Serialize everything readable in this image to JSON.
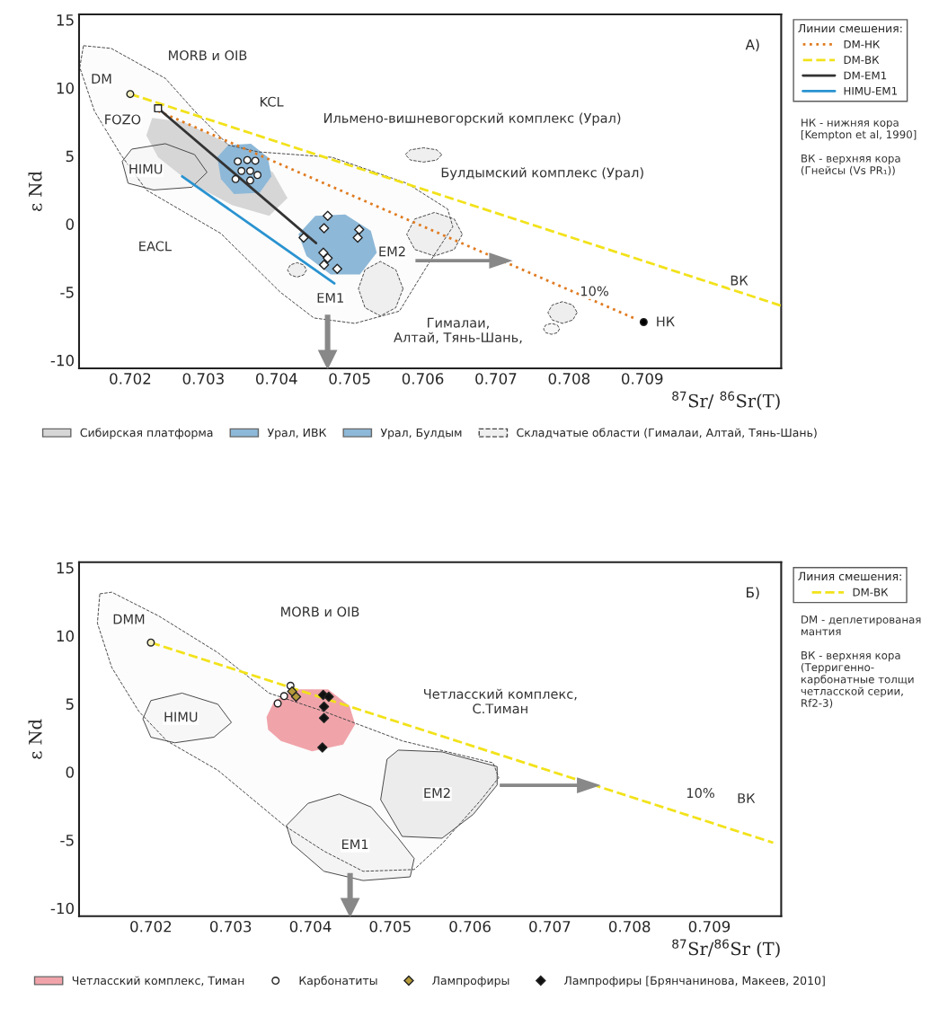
{
  "chart_data": [
    {
      "type": "scatter",
      "title": "А)",
      "xlabel": "$^{87}$Sr/ $^{86}$Sr(T)",
      "ylabel": "ε Nd",
      "legend_title": "Линии смешения:",
      "legend": "right",
      "xlim": [
        0.7013,
        0.7109
      ],
      "ylim": [
        -10.6,
        15.4
      ],
      "xticks": [
        0.702,
        0.703,
        0.704,
        0.705,
        0.706,
        0.707,
        0.708,
        0.709
      ],
      "yticks": [
        -10,
        -5,
        0,
        5,
        10,
        15
      ],
      "series": [
        {
          "type": "area",
          "line_style": "dashed",
          "color": "#fcfcfc",
          "x": [
            0.70136,
            0.70174,
            0.70248,
            0.70288,
            0.70334,
            0.70375,
            0.70476,
            0.70578,
            0.70634,
            0.70641,
            0.70608,
            0.70568,
            0.70507,
            0.70451,
            0.70405,
            0.70324,
            0.70273,
            0.70222,
            0.70187,
            0.70151,
            0.70131
          ],
          "values": [
            13.1,
            12.9,
            10.7,
            8.3,
            5.8,
            5.3,
            4.9,
            3.0,
            1.1,
            -0.2,
            -2.9,
            -6.4,
            -7.3,
            -6.9,
            -5.0,
            -0.7,
            0.9,
            2.5,
            5.1,
            8.3,
            11.5
          ]
        },
        {
          "type": "area",
          "name": "Сибирская платформа",
          "color": "#d6d6d6",
          "x": [
            0.7023,
            0.70273,
            0.70334,
            0.70395,
            0.70415,
            0.7039,
            0.70339,
            0.70283,
            0.70238,
            0.70222
          ],
          "values": [
            7.8,
            7.5,
            5.9,
            3.8,
            1.9,
            0.6,
            1.4,
            3.0,
            4.9,
            6.5
          ]
        },
        {
          "type": "area",
          "line_style": "solid",
          "color": "#f7f7f7",
          "x": [
            0.70189,
            0.70202,
            0.70248,
            0.70288,
            0.70305,
            0.70284,
            0.70232,
            0.70197
          ],
          "values": [
            4.6,
            5.5,
            5.9,
            5.1,
            3.8,
            2.7,
            2.5,
            3.0
          ]
        },
        {
          "type": "area",
          "name": "Урал, ИВК",
          "color": "#8db8d8",
          "x": [
            0.70319,
            0.70334,
            0.70365,
            0.70388,
            0.70393,
            0.70377,
            0.70342,
            0.70324
          ],
          "values": [
            4.9,
            5.8,
            5.9,
            4.9,
            3.5,
            2.3,
            2.2,
            3.3
          ]
        },
        {
          "type": "area",
          "name": "Урал, Булдым",
          "color": "#8db8d8",
          "x": [
            0.7043,
            0.70453,
            0.70494,
            0.70529,
            0.70537,
            0.70514,
            0.70474,
            0.70441
          ],
          "values": [
            -0.75,
            0.6,
            0.7,
            -0.5,
            -2.1,
            -3.7,
            -3.7,
            -2.35
          ]
        },
        {
          "type": "area",
          "name": "Складчатые области (Гималаи, Алтай, Тянь-Шань)",
          "line_style": "dashed",
          "color": "#efefef",
          "x": [
            0.70654,
            0.70643,
            0.70616,
            0.70589,
            0.70578,
            0.70589,
            0.70616,
            0.70643
          ],
          "values": [
            -0.75,
            -1.87,
            -2.35,
            -1.87,
            -0.75,
            0.37,
            0.85,
            0.37
          ]
        },
        {
          "type": "area",
          "line_style": "dashed",
          "color": "#efefef",
          "x": [
            0.70573,
            0.70563,
            0.70542,
            0.70521,
            0.70512,
            0.70521,
            0.70542,
            0.70563
          ],
          "values": [
            -4.75,
            -6.15,
            -6.75,
            -6.15,
            -4.75,
            -3.35,
            -2.75,
            -3.35
          ]
        },
        {
          "type": "area",
          "line_style": "dashed",
          "color": "#efefef",
          "x": [
            0.70626,
            0.70619,
            0.70601,
            0.70583,
            0.70576,
            0.70583,
            0.70601,
            0.70619
          ],
          "values": [
            5.1,
            4.7,
            4.55,
            4.7,
            5.1,
            5.45,
            5.6,
            5.45
          ]
        },
        {
          "type": "area",
          "line_style": "dashed",
          "color": "#eeeeee",
          "x": [
            0.70811,
            0.70805,
            0.70791,
            0.70777,
            0.70771,
            0.70777,
            0.70791,
            0.70805
          ],
          "values": [
            -6.5,
            -7.05,
            -7.3,
            -7.05,
            -6.5,
            -5.95,
            -5.7,
            -5.95
          ]
        },
        {
          "type": "area",
          "line_style": "dashed",
          "color": "#f7f7f7",
          "x": [
            0.70787,
            0.70784,
            0.70776,
            0.70768,
            0.70765,
            0.70768,
            0.70776,
            0.70784
          ],
          "values": [
            -7.7,
            -7.98,
            -8.1,
            -7.98,
            -7.7,
            -7.42,
            -7.3,
            -7.42
          ]
        },
        {
          "type": "area",
          "line_style": "dashed",
          "color": "#efefef",
          "x": [
            0.70441,
            0.70437,
            0.70428,
            0.70419,
            0.70415,
            0.70419,
            0.70428,
            0.70437
          ],
          "values": [
            -3.37,
            -3.74,
            -3.9,
            -3.74,
            -3.37,
            -3.0,
            -2.84,
            -3.0
          ]
        },
        {
          "type": "line",
          "name": "DM-НК",
          "line_style": "dotted",
          "color": "#e07b20",
          "x": [
            0.70238,
            0.70888
          ],
          "values": [
            8.3,
            -6.9
          ]
        },
        {
          "type": "line",
          "name": "DM-ВК",
          "line_style": "dashed",
          "color": "#f2e21a",
          "x": [
            0.702,
            0.7109
          ],
          "values": [
            9.55,
            -6.0
          ]
        },
        {
          "type": "line",
          "name": "DM-EM1",
          "line_style": "solid",
          "color": "#333333",
          "x": [
            0.70238,
            0.70454
          ],
          "values": [
            8.5,
            -1.4
          ]
        },
        {
          "type": "line",
          "name": "HIMU-EM1",
          "line_style": "solid",
          "color": "#2a93d0",
          "x": [
            0.70271,
            0.70479
          ],
          "values": [
            3.5,
            -4.36
          ]
        },
        {
          "type": "scatter",
          "marker": "circle",
          "color": "#ffffff",
          "x": [
            0.70347,
            0.7036,
            0.70371,
            0.70352,
            0.70364,
            0.70374,
            0.70364,
            0.70344
          ],
          "values": [
            4.6,
            4.7,
            4.65,
            3.9,
            3.9,
            3.6,
            3.2,
            3.3
          ]
        },
        {
          "type": "scatter",
          "marker": "diamond",
          "color": "#ffffff",
          "x": [
            0.7047,
            0.70465,
            0.70513,
            0.70511,
            0.70437,
            0.70464,
            0.7047,
            0.70465,
            0.70483
          ],
          "values": [
            0.6,
            -0.3,
            -0.4,
            -1.0,
            -1.0,
            -2.1,
            -2.5,
            -3.0,
            -3.3
          ]
        },
        {
          "type": "scatter",
          "marker": "circle",
          "color": "#f4f0c0",
          "x": [
            0.702
          ],
          "values": [
            9.55
          ]
        },
        {
          "type": "scatter",
          "marker": "square",
          "color": "#ffffff",
          "x": [
            0.70238
          ],
          "values": [
            8.5
          ]
        },
        {
          "type": "scatter",
          "marker": "circle",
          "color": "#000000",
          "x": [
            0.70902
          ],
          "values": [
            -7.2
          ]
        }
      ],
      "annotations": [
        "MORB и OIB",
        "DM",
        "FOZO",
        "KCL",
        "Ильмено-вишневогорский комплекс (Урал)",
        "Булдымский комплекс (Урал)",
        "HIMU",
        "EACL",
        "EM2",
        "EM1",
        "Гималаи,\nАлтай, Тянь-Шань,",
        "10%",
        "ВК",
        "НК",
        "НК - нижняя кора\n[Kempton et al, 1990]",
        "ВК - верхняя кора\n(Гнейсы (Vs PR₁))"
      ]
    },
    {
      "type": "scatter",
      "title": "Б)",
      "xlabel": "$^{87}$Sr/$^{86}$Sr (T)",
      "ylabel": "ε Nd",
      "legend_title": "Линия смешения:",
      "legend": "right",
      "xlim": [
        0.7011,
        0.7099
      ],
      "ylim": [
        -10.6,
        15.4
      ],
      "xticks": [
        0.702,
        0.703,
        0.704,
        0.705,
        0.706,
        0.707,
        0.708,
        0.709
      ],
      "yticks": [
        -10,
        -5,
        0,
        5,
        10,
        15
      ],
      "series": [
        {
          "type": "area",
          "line_style": "dashed",
          "color": "#fcfcfc",
          "x": [
            0.70136,
            0.70151,
            0.7021,
            0.70284,
            0.70348,
            0.70417,
            0.70515,
            0.70629,
            0.70636,
            0.70614,
            0.70565,
            0.7053,
            0.70466,
            0.70417,
            0.70367,
            0.70284,
            0.7022,
            0.70185,
            0.70151,
            0.70133
          ],
          "values": [
            13.08,
            13.2,
            11.45,
            8.76,
            5.79,
            4.44,
            2.28,
            0.66,
            -0.42,
            -2.04,
            -5.28,
            -7.17,
            -7.3,
            -5.82,
            -3.93,
            0.12,
            2.28,
            4.44,
            7.67,
            10.92
          ]
        },
        {
          "type": "area",
          "line_style": "solid",
          "color": "#f7f7f7",
          "x": [
            0.7019,
            0.702,
            0.70239,
            0.70284,
            0.70301,
            0.70279,
            0.7023,
            0.702
          ],
          "values": [
            3.9,
            5.24,
            5.79,
            4.97,
            3.63,
            2.55,
            2.14,
            2.55
          ]
        },
        {
          "type": "area",
          "line_style": "solid",
          "color": "#ececec",
          "x": [
            0.70496,
            0.7051,
            0.70565,
            0.70634,
            0.70634,
            0.70604,
            0.70565,
            0.70515,
            0.70488
          ],
          "values": [
            0.93,
            1.6,
            1.47,
            0.39,
            -0.96,
            -3.12,
            -4.87,
            -4.74,
            -2.04
          ]
        },
        {
          "type": "area",
          "line_style": "solid",
          "color": "#f4f4f4",
          "x": [
            0.7037,
            0.70397,
            0.70436,
            0.70476,
            0.7051,
            0.7053,
            0.70525,
            0.70466,
            0.70417,
            0.70377
          ],
          "values": [
            -3.93,
            -2.31,
            -1.63,
            -2.58,
            -4.87,
            -6.36,
            -7.71,
            -7.98,
            -7.3,
            -5.28
          ]
        },
        {
          "type": "area",
          "name": "Четласский комплекс, Тиман",
          "color": "#f0a4aa",
          "x": [
            0.70345,
            0.70355,
            0.70382,
            0.70422,
            0.70449,
            0.70456,
            0.70441,
            0.70402,
            0.70363,
            0.70347
          ],
          "values": [
            4.03,
            5.24,
            6.06,
            6.06,
            4.84,
            3.49,
            2.0,
            1.52,
            2.28,
            3.09
          ]
        },
        {
          "type": "line",
          "name": "DM-ВК",
          "line_style": "dashed",
          "color": "#f2e21a",
          "x": [
            0.702,
            0.7098
          ],
          "values": [
            9.5,
            -5.2
          ]
        },
        {
          "type": "scatter",
          "name": "Карбонатиты",
          "marker": "circle",
          "color": "#ffffff",
          "x": [
            0.70375,
            0.70367,
            0.70359
          ],
          "values": [
            6.33,
            5.57,
            5.03
          ]
        },
        {
          "type": "scatter",
          "name": "Лампрофиры",
          "marker": "diamond",
          "color": "#b59a3a",
          "x": [
            0.70382,
            0.70377
          ],
          "values": [
            5.52,
            5.91
          ]
        },
        {
          "type": "scatter",
          "name": "Лампрофиры [Брянчанинова, Макеев, 2010]",
          "marker": "diamond",
          "color": "#111111",
          "x": [
            0.70416,
            0.70423,
            0.70417,
            0.70417,
            0.70415
          ],
          "values": [
            5.65,
            5.52,
            4.8,
            3.95,
            1.8
          ]
        },
        {
          "type": "scatter",
          "marker": "circle",
          "color": "#f4f0c0",
          "x": [
            0.702
          ],
          "values": [
            9.5
          ]
        }
      ],
      "annotations": [
        "MORB и OIB",
        "DMM",
        "HIMU",
        "Четласский комплекс,\nС.Тиман",
        "EM2",
        "EM1",
        "10%",
        "ВК",
        "DM - деплетированая\nмантия",
        "ВК - верхняя кора\n(Терригенно-\nкарбонатные толщи\nчетласской серии,\nRf2-3)"
      ]
    }
  ]
}
